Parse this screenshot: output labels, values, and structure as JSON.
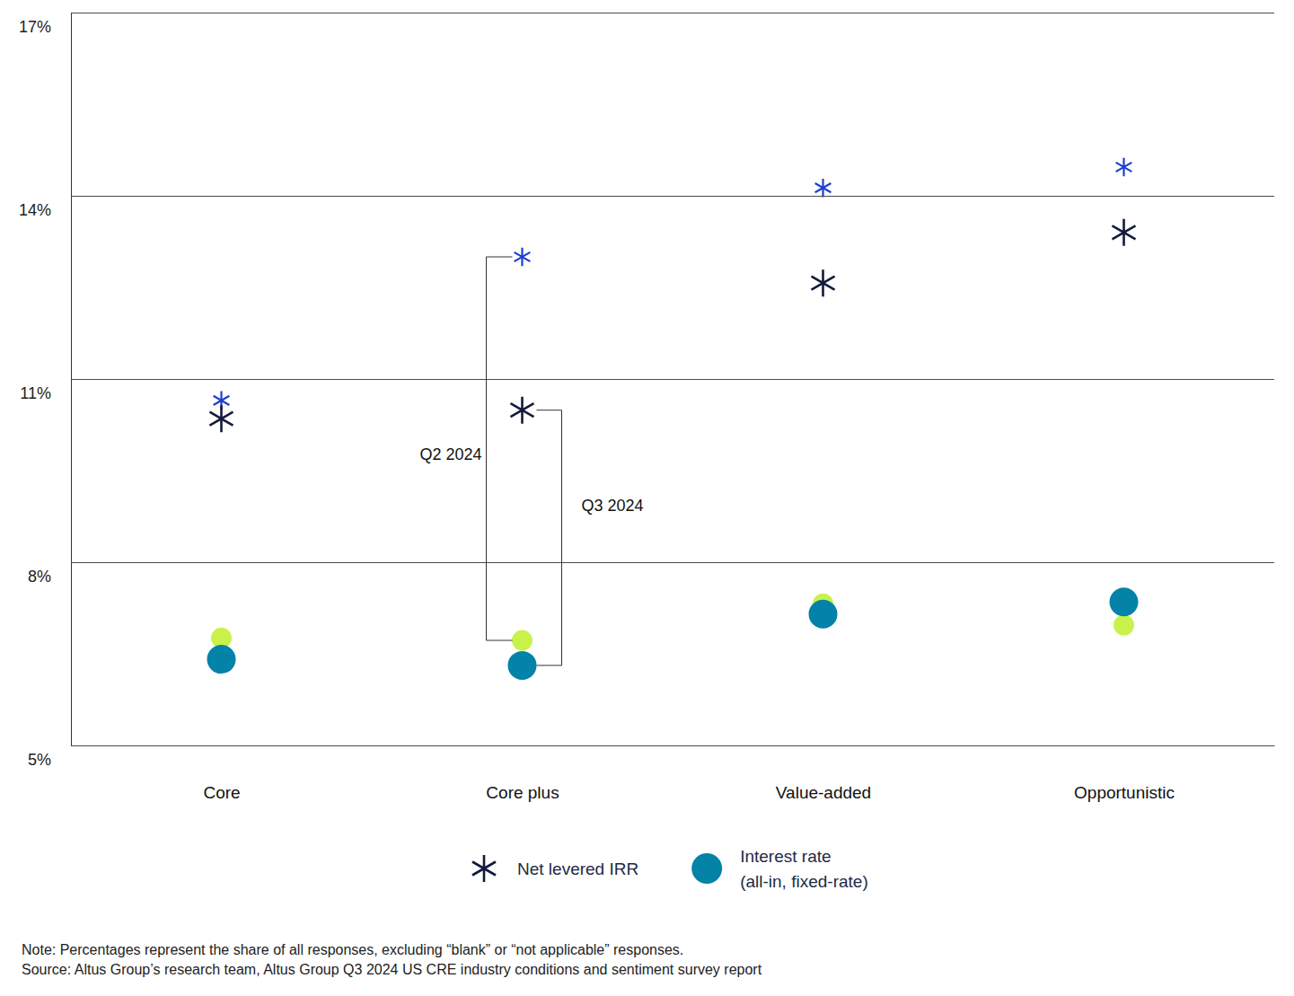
{
  "chart_data": {
    "type": "scatter",
    "categories": [
      "Core",
      "Core plus",
      "Value-added",
      "Opportunistic"
    ],
    "series": [
      {
        "name": "Net levered IRR",
        "period": "Q2 2024",
        "color": "#1d3fd1",
        "marker": "asterisk",
        "values": [
          10.65,
          13.0,
          14.13,
          14.47
        ]
      },
      {
        "name": "Interest rate (all-in, fixed-rate)",
        "period": "Q2 2024",
        "color": "#c8f24a",
        "marker": "circle",
        "values": [
          6.76,
          6.72,
          7.32,
          6.97
        ]
      },
      {
        "name": "Net levered IRR",
        "period": "Q3 2024",
        "color": "#141a3c",
        "marker": "asterisk",
        "values": [
          10.35,
          10.49,
          12.57,
          13.4
        ]
      },
      {
        "name": "Interest rate (all-in, fixed-rate)",
        "period": "Q3 2024",
        "color": "#0582a8",
        "marker": "circle",
        "values": [
          6.41,
          6.31,
          7.15,
          7.35
        ]
      }
    ],
    "ylim": [
      5,
      17
    ],
    "yticks": [
      {
        "value": 5,
        "label": "5%"
      },
      {
        "value": 8,
        "label": "8%"
      },
      {
        "value": 11,
        "label": "11%"
      },
      {
        "value": 14,
        "label": "14%"
      },
      {
        "value": 17,
        "label": "17%"
      }
    ],
    "grid": true,
    "legend": "bottom",
    "annotations": [
      {
        "text": "Q2 2024",
        "category": "Core plus"
      },
      {
        "text": "Q3 2024",
        "category": "Core plus"
      }
    ],
    "note": "Note: Percentages represent the share of all responses, excluding “blank” or “not applicable” responses.",
    "source": "Source: Altus Group’s research team, Altus Group Q3 2024 US CRE industry conditions and sentiment survey report"
  }
}
